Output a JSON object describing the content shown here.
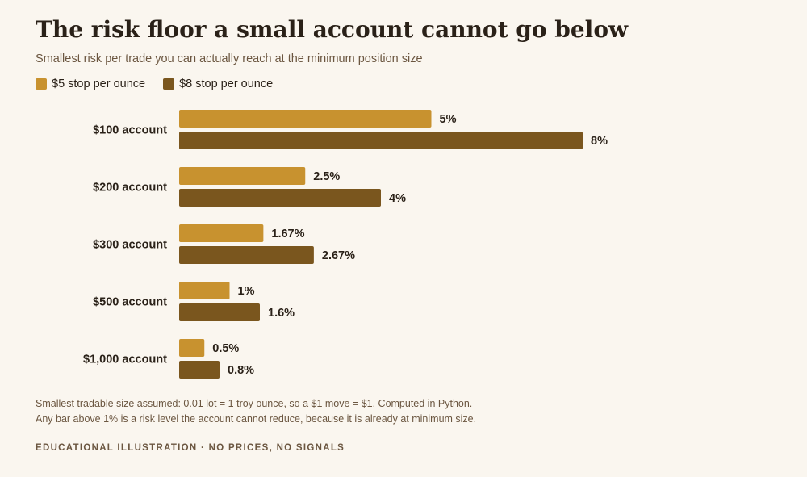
{
  "chart_data": {
    "type": "bar",
    "orientation": "horizontal",
    "title": "The risk floor a small account cannot go below",
    "subtitle": "Smallest risk per trade you can actually reach at the minimum position size",
    "categories": [
      "$100 account",
      "$200 account",
      "$300 account",
      "$500 account",
      "$1,000 account"
    ],
    "series": [
      {
        "name": "$5 stop per ounce",
        "color": "#c8922f",
        "values": [
          5,
          2.5,
          1.67,
          1,
          0.5
        ],
        "labels": [
          "5%",
          "2.5%",
          "1.67%",
          "1%",
          "0.5%"
        ]
      },
      {
        "name": "$8 stop per ounce",
        "color": "#7a561e",
        "values": [
          8,
          4,
          2.67,
          1.6,
          0.8
        ],
        "labels": [
          "8%",
          "4%",
          "2.67%",
          "1.6%",
          "0.8%"
        ]
      }
    ],
    "xlim": [
      0,
      9.6
    ],
    "grid": false,
    "legend_position": "top-left"
  },
  "footnotes": [
    "Smallest tradable size assumed: 0.01 lot = 1 troy ounce, so a $1 move = $1. Computed in Python.",
    "Any bar above 1% is a risk level the account cannot reduce, because it is already at minimum size."
  ],
  "disclaimer": "EDUCATIONAL ILLUSTRATION · NO PRICES, NO SIGNALS"
}
